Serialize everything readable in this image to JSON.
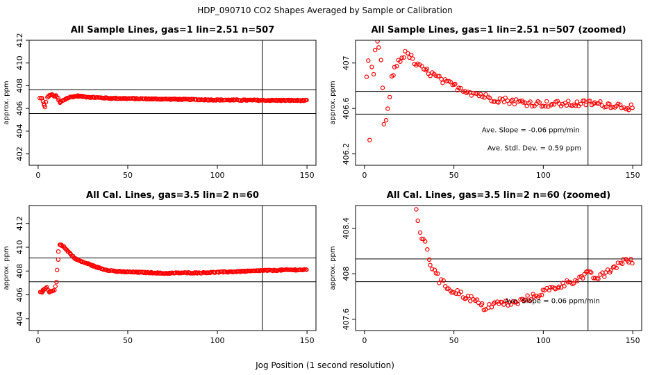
{
  "figure": {
    "suptitle": "HDP_090710  CO2 Shapes Averaged by Sample or Calibration",
    "xlabel": "Jog Position (1 second resolution)"
  },
  "colors": {
    "points": "#ff0000",
    "lines": "#000000"
  },
  "chart_data": [
    {
      "type": "scatter",
      "title": "All Sample Lines, gas=1 lin=2.51 n=507",
      "ylabel": "approx. ppm",
      "xlim": [
        -5,
        155
      ],
      "ylim": [
        401,
        412
      ],
      "xticks": [
        0,
        50,
        100,
        150
      ],
      "yticks": [
        402,
        404,
        406,
        408,
        410,
        412
      ],
      "hlines": [
        405.55,
        407.65
      ],
      "vline": 125,
      "annotations": [],
      "series": [
        {
          "keypoints": [
            [
              1,
              406.9
            ],
            [
              2,
              406.9
            ],
            [
              3,
              406.4
            ],
            [
              4,
              406.1
            ],
            [
              5,
              407.0
            ],
            [
              6,
              407.1
            ],
            [
              7,
              407.2
            ],
            [
              8,
              407.2
            ],
            [
              9,
              407.1
            ],
            [
              10,
              407.1
            ],
            [
              11,
              406.9
            ],
            [
              12,
              406.5
            ],
            [
              13,
              406.6
            ],
            [
              15,
              406.8
            ],
            [
              18,
              407.0
            ],
            [
              22,
              407.1
            ],
            [
              28,
              407.0
            ],
            [
              40,
              406.9
            ],
            [
              60,
              406.85
            ],
            [
              80,
              406.8
            ],
            [
              100,
              406.75
            ],
            [
              125,
              406.72
            ],
            [
              150,
              406.7
            ]
          ]
        }
      ]
    },
    {
      "type": "scatter",
      "title": "All Sample Lines, gas=1 lin=2.51 n=507 (zoomed)",
      "ylabel": "approx. ppm",
      "xlim": [
        -5,
        155
      ],
      "ylim": [
        406.1,
        407.2
      ],
      "xticks": [
        0,
        50,
        100,
        150
      ],
      "yticks": [
        406.2,
        406.6,
        407.0
      ],
      "hlines": [
        406.55,
        406.75
      ],
      "vline": 125,
      "annotations": [
        {
          "text": "Ave. Slope =  -0.06  ppm/min",
          "x": 93,
          "y": 406.39
        },
        {
          "text": "Ave. Stdl. Dev. =  0.59  ppm",
          "x": 95,
          "y": 406.23
        }
      ],
      "series": [
        {
          "keypoints": [
            [
              1,
              406.87
            ],
            [
              2,
              407.0
            ],
            [
              3,
              406.33
            ],
            [
              4,
              406.94
            ],
            [
              5,
              406.89
            ],
            [
              6,
              407.13
            ],
            [
              7,
              407.18
            ],
            [
              8,
              407.13
            ],
            [
              9,
              407.03
            ],
            [
              10,
              406.76
            ],
            [
              11,
              406.46
            ],
            [
              12,
              406.47
            ],
            [
              13,
              406.6
            ],
            [
              14,
              406.72
            ],
            [
              15,
              406.86
            ],
            [
              17,
              406.95
            ],
            [
              19,
              407.02
            ],
            [
              21,
              407.05
            ],
            [
              23,
              407.08
            ],
            [
              25,
              407.07
            ],
            [
              28,
              407.0
            ],
            [
              32,
              406.95
            ],
            [
              36,
              406.92
            ],
            [
              40,
              406.88
            ],
            [
              45,
              406.83
            ],
            [
              50,
              406.8
            ],
            [
              55,
              406.77
            ],
            [
              60,
              406.74
            ],
            [
              65,
              406.72
            ],
            [
              70,
              406.69
            ],
            [
              80,
              406.67
            ],
            [
              90,
              406.65
            ],
            [
              100,
              406.64
            ],
            [
              110,
              406.64
            ],
            [
              120,
              406.64
            ],
            [
              125,
              406.65
            ],
            [
              130,
              406.64
            ],
            [
              140,
              406.63
            ],
            [
              150,
              406.61
            ]
          ]
        }
      ]
    },
    {
      "type": "scatter",
      "title": "All Cal. Lines, gas=3.5 lin=2 n=60",
      "ylabel": "approx. ppm",
      "xlim": [
        -5,
        155
      ],
      "ylim": [
        403,
        413.5
      ],
      "xticks": [
        0,
        50,
        100,
        150
      ],
      "yticks": [
        404,
        406,
        408,
        410,
        412
      ],
      "hlines": [
        407.1,
        409.1
      ],
      "vline": 125,
      "annotations": [],
      "series": [
        {
          "keypoints": [
            [
              1,
              406.2
            ],
            [
              2,
              406.2
            ],
            [
              3,
              406.4
            ],
            [
              4,
              406.5
            ],
            [
              5,
              406.6
            ],
            [
              6,
              406.2
            ],
            [
              7,
              406.3
            ],
            [
              8,
              406.3
            ],
            [
              9,
              406.4
            ],
            [
              10,
              407.1
            ],
            [
              11,
              409.0
            ],
            [
              12,
              410.2
            ],
            [
              13,
              410.2
            ],
            [
              14,
              410.1
            ],
            [
              15,
              409.9
            ],
            [
              17,
              409.6
            ],
            [
              19,
              409.3
            ],
            [
              21,
              409.0
            ],
            [
              24,
              408.8
            ],
            [
              28,
              408.6
            ],
            [
              33,
              408.3
            ],
            [
              38,
              408.1
            ],
            [
              45,
              407.95
            ],
            [
              55,
              407.9
            ],
            [
              65,
              407.85
            ],
            [
              70,
              407.8
            ],
            [
              80,
              407.85
            ],
            [
              90,
              407.85
            ],
            [
              100,
              407.9
            ],
            [
              110,
              407.95
            ],
            [
              120,
              408.0
            ],
            [
              125,
              408.05
            ],
            [
              130,
              408.05
            ],
            [
              140,
              408.1
            ],
            [
              150,
              408.1
            ]
          ]
        }
      ]
    },
    {
      "type": "scatter",
      "title": "All Cal. Lines, gas=3.5 lin=2 n=60 (zoomed)",
      "ylabel": "approx. ppm",
      "xlim": [
        -5,
        155
      ],
      "ylim": [
        407.5,
        408.6
      ],
      "xticks": [
        0,
        50,
        100,
        150
      ],
      "yticks": [
        407.6,
        408.0,
        408.4
      ],
      "hlines": [
        407.93,
        408.13
      ],
      "vline": 125,
      "annotations": [
        {
          "text": "Ave. Slope = 0.06  ppm/min",
          "x": 105,
          "y": 407.74
        }
      ],
      "series": [
        {
          "keypoints": [
            [
              29,
              408.56
            ],
            [
              30,
              408.48
            ],
            [
              31,
              408.38
            ],
            [
              32,
              408.32
            ],
            [
              33,
              408.28
            ],
            [
              34,
              408.26
            ],
            [
              35,
              408.22
            ],
            [
              36,
              408.14
            ],
            [
              37,
              408.08
            ],
            [
              38,
              408.06
            ],
            [
              40,
              408.02
            ],
            [
              42,
              407.94
            ],
            [
              45,
              407.9
            ],
            [
              48,
              407.86
            ],
            [
              52,
              407.84
            ],
            [
              56,
              407.8
            ],
            [
              60,
              407.78
            ],
            [
              64,
              407.74
            ],
            [
              67,
              407.7
            ],
            [
              70,
              407.72
            ],
            [
              75,
              407.74
            ],
            [
              80,
              407.74
            ],
            [
              85,
              407.74
            ],
            [
              90,
              407.78
            ],
            [
              95,
              407.8
            ],
            [
              100,
              407.84
            ],
            [
              105,
              407.87
            ],
            [
              110,
              407.9
            ],
            [
              115,
              407.93
            ],
            [
              120,
              407.96
            ],
            [
              125,
              408.0
            ],
            [
              130,
              407.96
            ],
            [
              135,
              408.0
            ],
            [
              140,
              408.06
            ],
            [
              145,
              408.12
            ],
            [
              150,
              408.1
            ]
          ]
        }
      ]
    }
  ]
}
